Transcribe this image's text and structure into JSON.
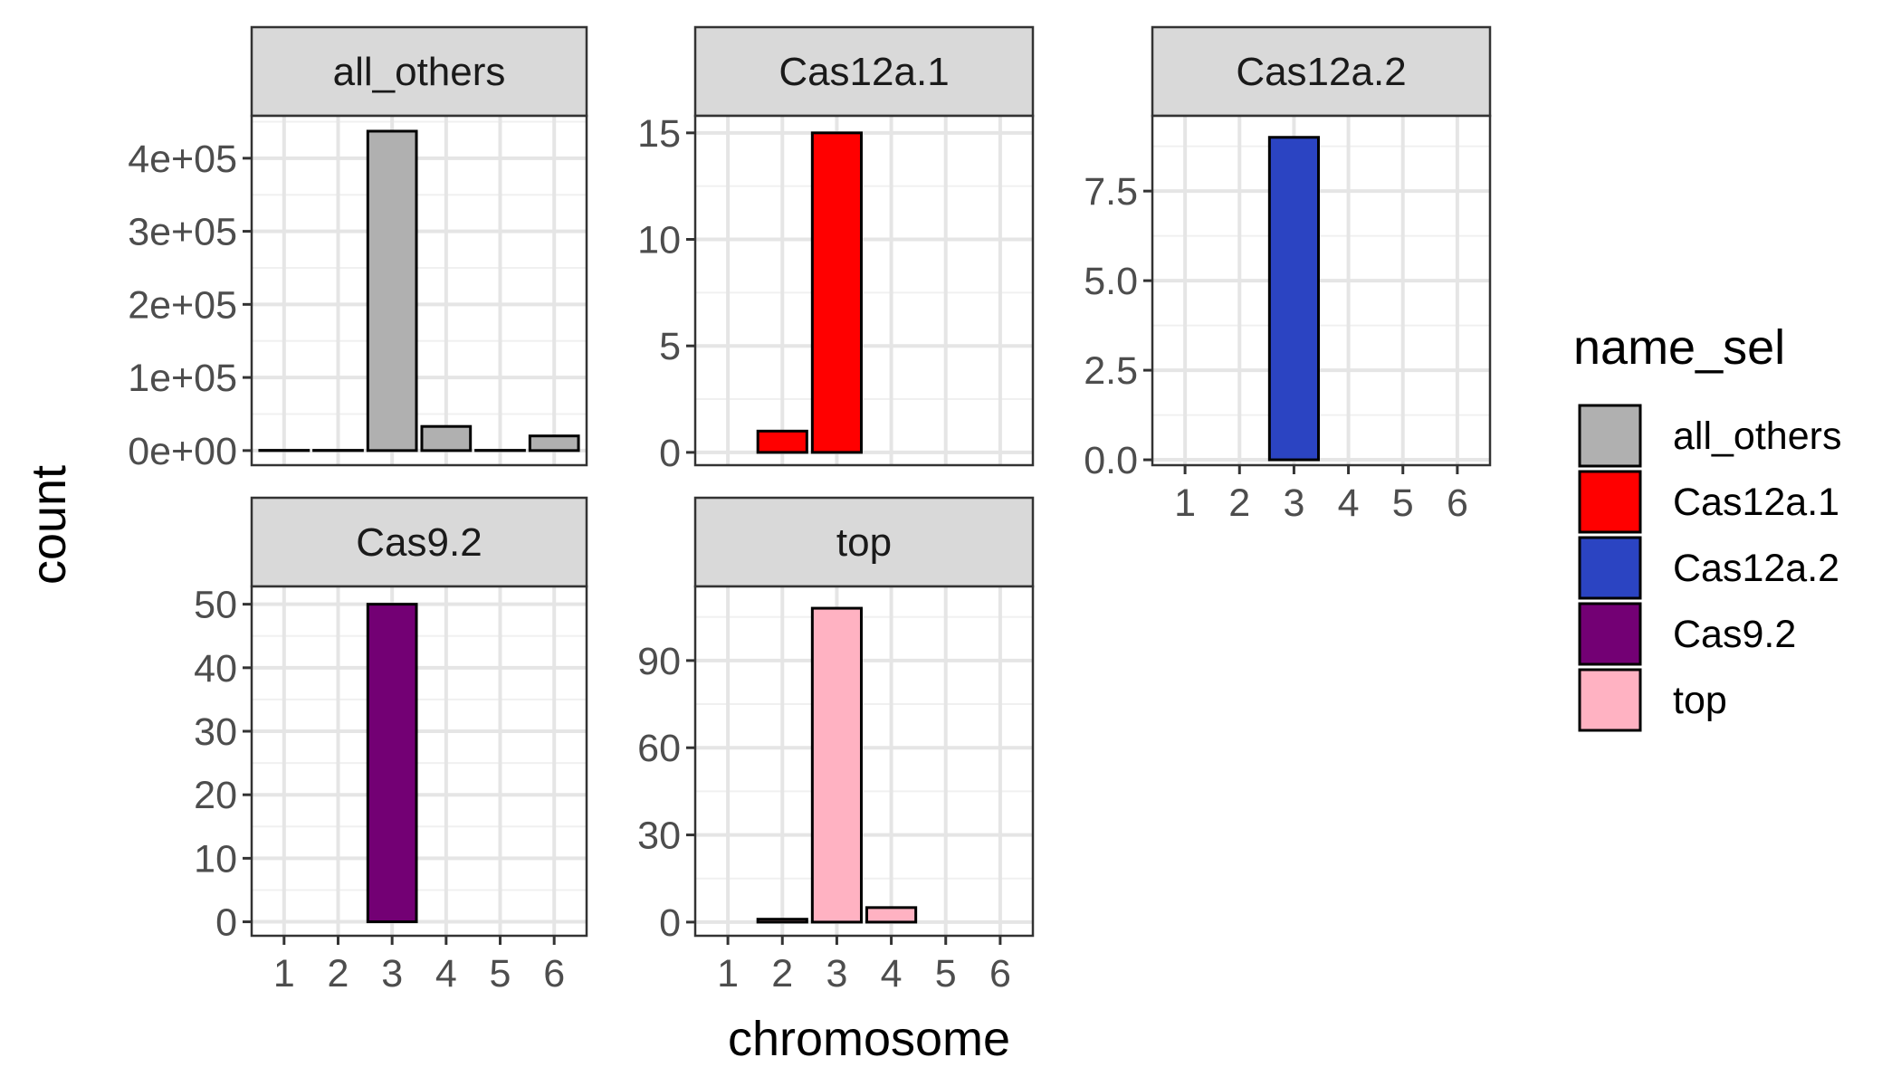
{
  "chart_data": {
    "type": "bar",
    "layout": "faceted",
    "xlabel": "chromosome",
    "ylabel": "count",
    "categories": [
      "1",
      "2",
      "3",
      "4",
      "5",
      "6"
    ],
    "grid": true,
    "legend": {
      "title": "name_sel",
      "position": "right",
      "items": [
        {
          "name": "all_others",
          "color": "#b0b0b0"
        },
        {
          "name": "Cas12a.1",
          "color": "#ff0000"
        },
        {
          "name": "Cas12a.2",
          "color": "#2b44c2"
        },
        {
          "name": "Cas9.2",
          "color": "#730074"
        },
        {
          "name": "top",
          "color": "#ffb2c2"
        }
      ]
    },
    "facets": [
      {
        "name": "all_others",
        "color": "#b0b0b0",
        "values": [
          300,
          300,
          437000,
          33000,
          300,
          20000
        ],
        "ylim": [
          -20000,
          458000
        ],
        "yticks": [
          0,
          100000,
          200000,
          300000,
          400000
        ],
        "yticklabels": [
          "0e+00",
          "1e+05",
          "2e+05",
          "3e+05",
          "4e+05"
        ],
        "show_x_ticks": false
      },
      {
        "name": "Cas12a.1",
        "color": "#ff0000",
        "values": [
          0,
          1,
          15,
          0,
          0,
          0
        ],
        "ylim": [
          -0.6,
          15.8
        ],
        "yticks": [
          0,
          5,
          10,
          15
        ],
        "yticklabels": [
          "0",
          "5",
          "10",
          "15"
        ],
        "show_x_ticks": false
      },
      {
        "name": "Cas12a.2",
        "color": "#2b44c2",
        "values": [
          0,
          0,
          9,
          0,
          0,
          0
        ],
        "ylim": [
          -0.15,
          9.6
        ],
        "yticks": [
          0,
          2.5,
          5,
          7.5
        ],
        "yticklabels": [
          "0.0",
          "2.5",
          "5.0",
          "7.5"
        ],
        "show_x_ticks": true
      },
      {
        "name": "Cas9.2",
        "color": "#730074",
        "values": [
          0,
          0,
          50,
          0,
          0,
          0
        ],
        "ylim": [
          -2.2,
          52.8
        ],
        "yticks": [
          0,
          10,
          20,
          30,
          40,
          50
        ],
        "yticklabels": [
          "0",
          "10",
          "20",
          "30",
          "40",
          "50"
        ],
        "show_x_ticks": true
      },
      {
        "name": "top",
        "color": "#ffb2c2",
        "values": [
          0,
          1,
          108,
          5,
          0,
          0
        ],
        "ylim": [
          -4.7,
          115.5
        ],
        "yticks": [
          0,
          30,
          60,
          90
        ],
        "yticklabels": [
          "0",
          "30",
          "60",
          "90"
        ],
        "show_x_ticks": true
      }
    ]
  }
}
